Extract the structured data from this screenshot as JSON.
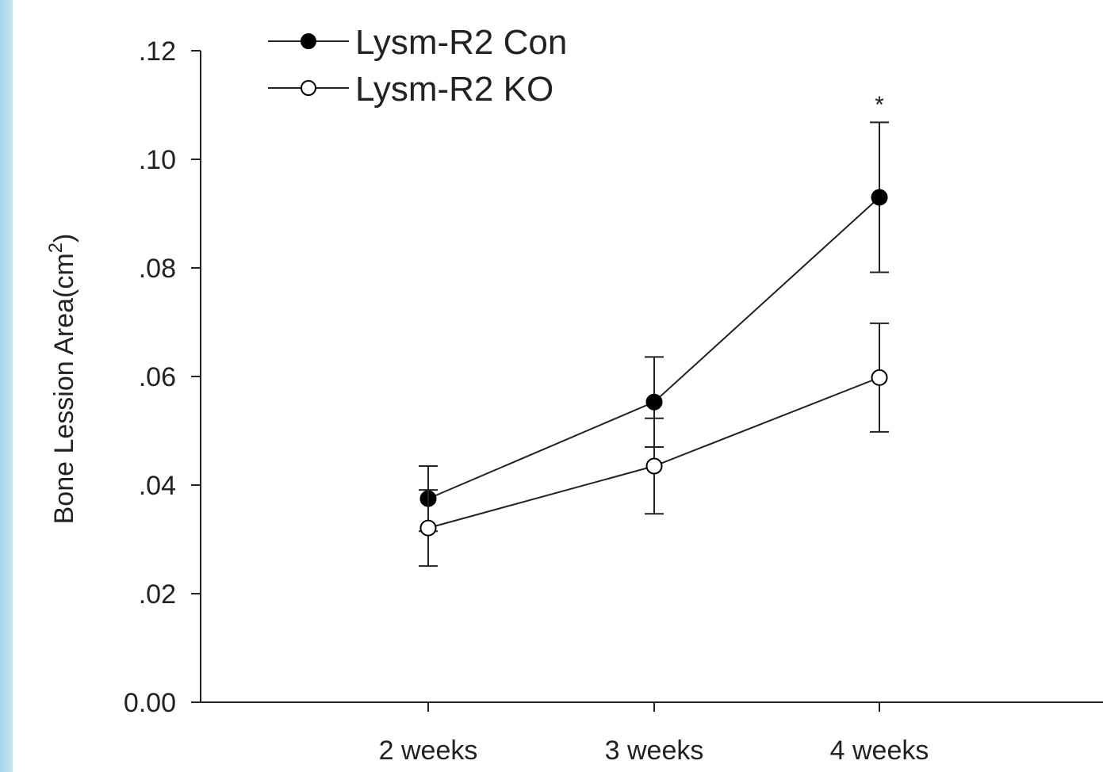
{
  "colors": {
    "accent_strip": "#b3dde9",
    "con_marker": "#000000",
    "ko_marker": "#ffffff",
    "line": "#222222"
  },
  "chart_data": {
    "type": "line",
    "title": "",
    "xlabel": "",
    "ylabel": "Bone Lession Area(cm",
    "ylabel_sup": "2",
    "ylabel_close": ")",
    "categories": [
      "2 weeks",
      "3 weeks",
      "4 weeks"
    ],
    "ylim": [
      0,
      0.12
    ],
    "yticks": [
      0,
      0.02,
      0.04,
      0.06,
      0.08,
      0.1,
      0.12
    ],
    "ytick_labels": [
      "0.00",
      ".02",
      ".04",
      ".06",
      ".08",
      ".10",
      ".12"
    ],
    "legend_position": "top-left",
    "grid": false,
    "series": [
      {
        "name": "Lysm-R2 Con",
        "marker": "filled-circle",
        "values": [
          0.0375,
          0.0553,
          0.093
        ],
        "error": [
          0.006,
          0.0083,
          0.0138
        ]
      },
      {
        "name": "Lysm-R2 KO",
        "marker": "open-circle",
        "values": [
          0.0321,
          0.0435,
          0.0598
        ],
        "error": [
          0.007,
          0.0088,
          0.01
        ]
      }
    ],
    "annotations": [
      {
        "text": "*",
        "category": "4 weeks",
        "y": 0.1115
      }
    ]
  }
}
